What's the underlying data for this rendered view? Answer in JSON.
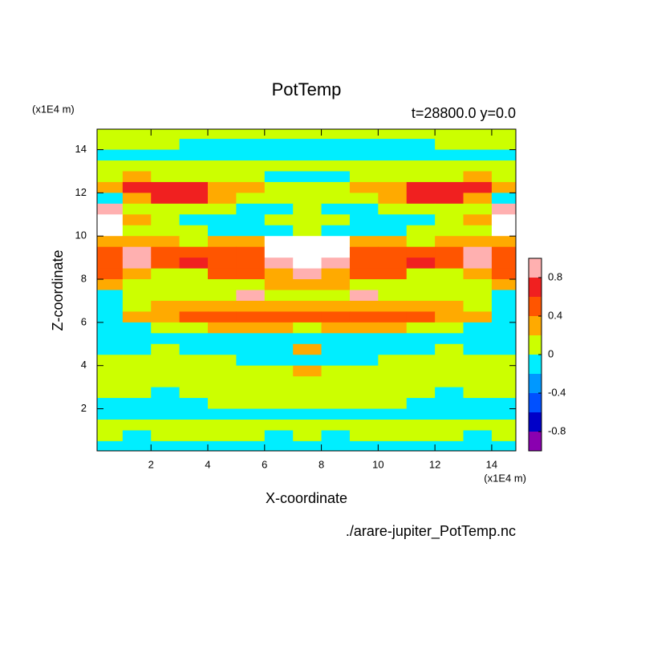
{
  "chart_data": {
    "type": "contour",
    "title": "PotTemp",
    "subtitle": "t=28800.0 y=0.0",
    "x_label": "X-coordinate",
    "y_label": "Z-coordinate",
    "x_unit": "(x1E4 m)",
    "y_unit": "(x1E4 m)",
    "footer": "./arare-jupiter_PotTemp.nc",
    "xlim": [
      0.1,
      14.85
    ],
    "ylim": [
      0.05,
      14.95
    ],
    "xticks": [
      2,
      4,
      6,
      8,
      10,
      12,
      14
    ],
    "yticks": [
      2,
      4,
      6,
      8,
      10,
      12,
      14
    ],
    "x": [
      0.5,
      1.5,
      2.5,
      3.5,
      4.5,
      5.5,
      6.5,
      7.5,
      8.5,
      9.5,
      10.5,
      11.5,
      12.5,
      13.5,
      14.5
    ],
    "y": [
      14.75,
      14.25,
      13.75,
      13.25,
      12.75,
      12.25,
      11.75,
      11.25,
      10.75,
      10.25,
      9.75,
      9.25,
      8.75,
      8.25,
      7.75,
      7.25,
      6.75,
      6.25,
      5.75,
      5.25,
      4.75,
      4.25,
      3.75,
      3.25,
      2.75,
      2.25,
      1.75,
      1.25,
      0.75,
      0.25
    ],
    "values": [
      [
        0.1,
        0.1,
        0.1,
        0.1,
        0.1,
        0.1,
        0.1,
        0.1,
        0.1,
        0.1,
        0.1,
        0.1,
        0.1,
        0.1,
        0.1
      ],
      [
        0.1,
        0.1,
        0.1,
        -0.1,
        -0.1,
        -0.1,
        -0.1,
        -0.1,
        -0.1,
        -0.1,
        -0.1,
        -0.1,
        0.1,
        0.1,
        0.1
      ],
      [
        -0.1,
        -0.1,
        -0.1,
        -0.1,
        -0.1,
        -0.1,
        -0.1,
        -0.1,
        -0.1,
        -0.1,
        -0.1,
        -0.1,
        -0.1,
        -0.1,
        -0.1
      ],
      [
        0.1,
        0.1,
        0.1,
        0.1,
        0.1,
        0.1,
        0.1,
        0.1,
        0.1,
        0.1,
        0.1,
        0.1,
        0.1,
        0.1,
        0.1
      ],
      [
        0.1,
        0.3,
        0.1,
        0.1,
        0.1,
        0.1,
        -0.1,
        -0.1,
        -0.1,
        0.1,
        0.1,
        0.1,
        0.1,
        0.3,
        0.1
      ],
      [
        0.3,
        0.7,
        0.7,
        0.7,
        0.3,
        0.3,
        0.1,
        0.1,
        0.1,
        0.3,
        0.3,
        0.7,
        0.7,
        0.7,
        0.3
      ],
      [
        -0.1,
        0.3,
        0.7,
        0.7,
        0.3,
        0.1,
        0.1,
        0.1,
        0.1,
        0.1,
        0.3,
        0.7,
        0.7,
        0.3,
        -0.1
      ],
      [
        0.9,
        0.1,
        0.1,
        0.1,
        0.1,
        -0.1,
        -0.1,
        0.1,
        -0.1,
        -0.1,
        0.1,
        0.1,
        0.1,
        0.1,
        0.9
      ],
      [
        1.1,
        0.3,
        0.1,
        -0.1,
        -0.1,
        -0.1,
        0.1,
        0.1,
        0.1,
        -0.1,
        -0.1,
        -0.1,
        0.1,
        0.3,
        1.1
      ],
      [
        1.1,
        0.1,
        0.1,
        0.1,
        -0.1,
        -0.1,
        -0.1,
        0.1,
        -0.1,
        -0.1,
        -0.1,
        0.1,
        0.1,
        0.1,
        1.1
      ],
      [
        0.3,
        0.3,
        0.3,
        0.1,
        0.3,
        0.3,
        1.1,
        1.1,
        1.1,
        0.3,
        0.3,
        0.1,
        0.3,
        0.3,
        0.3
      ],
      [
        0.5,
        0.9,
        0.5,
        0.5,
        0.5,
        0.5,
        1.1,
        1.1,
        1.1,
        0.5,
        0.5,
        0.5,
        0.5,
        0.9,
        0.5
      ],
      [
        0.5,
        0.9,
        0.5,
        0.7,
        0.5,
        0.5,
        0.9,
        1.1,
        0.9,
        0.5,
        0.5,
        0.7,
        0.5,
        0.9,
        0.5
      ],
      [
        0.5,
        0.3,
        0.1,
        0.1,
        0.5,
        0.5,
        0.3,
        0.9,
        0.3,
        0.5,
        0.5,
        0.1,
        0.1,
        0.3,
        0.5
      ],
      [
        0.3,
        0.1,
        0.1,
        0.1,
        0.1,
        0.1,
        0.3,
        0.3,
        0.3,
        0.1,
        0.1,
        0.1,
        0.1,
        0.1,
        0.3
      ],
      [
        -0.1,
        0.1,
        0.1,
        0.1,
        0.1,
        0.9,
        0.1,
        0.1,
        0.1,
        0.9,
        0.1,
        0.1,
        0.1,
        0.1,
        -0.1
      ],
      [
        -0.1,
        0.1,
        0.3,
        0.3,
        0.3,
        0.3,
        0.3,
        0.3,
        0.3,
        0.3,
        0.3,
        0.3,
        0.3,
        0.1,
        -0.1
      ],
      [
        -0.1,
        0.3,
        0.3,
        0.5,
        0.5,
        0.5,
        0.5,
        0.5,
        0.5,
        0.5,
        0.5,
        0.5,
        0.3,
        0.3,
        -0.1
      ],
      [
        -0.1,
        -0.1,
        0.1,
        0.1,
        0.3,
        0.3,
        0.3,
        0.1,
        0.3,
        0.3,
        0.3,
        0.1,
        0.1,
        -0.1,
        -0.1
      ],
      [
        -0.1,
        -0.1,
        -0.1,
        -0.1,
        -0.1,
        -0.1,
        -0.1,
        -0.1,
        -0.1,
        -0.1,
        -0.1,
        -0.1,
        -0.1,
        -0.1,
        -0.1
      ],
      [
        -0.1,
        -0.1,
        0.1,
        -0.1,
        -0.1,
        -0.1,
        -0.1,
        0.3,
        -0.1,
        -0.1,
        -0.1,
        -0.1,
        0.1,
        -0.1,
        -0.1
      ],
      [
        0.1,
        0.1,
        0.1,
        0.1,
        0.1,
        -0.1,
        -0.1,
        -0.1,
        -0.1,
        -0.1,
        0.1,
        0.1,
        0.1,
        0.1,
        0.1
      ],
      [
        0.1,
        0.1,
        0.1,
        0.1,
        0.1,
        0.1,
        0.1,
        0.3,
        0.1,
        0.1,
        0.1,
        0.1,
        0.1,
        0.1,
        0.1
      ],
      [
        0.1,
        0.1,
        0.1,
        0.1,
        0.1,
        0.1,
        0.1,
        0.1,
        0.1,
        0.1,
        0.1,
        0.1,
        0.1,
        0.1,
        0.1
      ],
      [
        0.1,
        0.1,
        -0.1,
        0.1,
        0.1,
        0.1,
        0.1,
        0.1,
        0.1,
        0.1,
        0.1,
        0.1,
        -0.1,
        0.1,
        0.1
      ],
      [
        -0.1,
        -0.1,
        -0.1,
        -0.1,
        0.1,
        0.1,
        0.1,
        0.1,
        0.1,
        0.1,
        0.1,
        -0.1,
        -0.1,
        -0.1,
        -0.1
      ],
      [
        -0.1,
        -0.1,
        -0.1,
        -0.1,
        -0.1,
        -0.1,
        -0.1,
        -0.1,
        -0.1,
        -0.1,
        -0.1,
        -0.1,
        -0.1,
        -0.1,
        -0.1
      ],
      [
        0.1,
        0.1,
        0.1,
        0.1,
        0.1,
        0.1,
        0.1,
        0.1,
        0.1,
        0.1,
        0.1,
        0.1,
        0.1,
        0.1,
        0.1
      ],
      [
        0.1,
        -0.1,
        0.1,
        0.1,
        0.1,
        0.1,
        -0.1,
        0.1,
        -0.1,
        0.1,
        0.1,
        0.1,
        0.1,
        -0.1,
        0.1
      ],
      [
        -0.1,
        -0.1,
        -0.1,
        -0.1,
        -0.1,
        -0.1,
        -0.1,
        -0.1,
        -0.1,
        -0.1,
        -0.1,
        -0.1,
        -0.1,
        -0.1,
        -0.1
      ]
    ],
    "levels": [
      -1,
      -0.8,
      -0.6,
      -0.4,
      -0.2,
      0,
      0.2,
      0.4,
      0.6,
      0.8,
      1
    ],
    "colors": [
      "#8a00b0",
      "#0000c8",
      "#0050ff",
      "#0098ff",
      "#00eeff",
      "#ccff00",
      "#ffaa00",
      "#ff5500",
      "#f02020",
      "#ffb0b0"
    ],
    "over_color": "#ffffff",
    "colorbar_ticks": [
      -0.8,
      -0.4,
      0,
      0.4,
      0.8
    ]
  }
}
